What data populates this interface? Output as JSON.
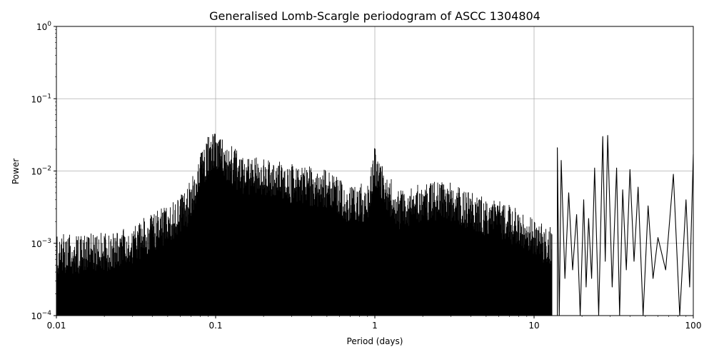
{
  "chart_data": {
    "type": "line",
    "title": "Generalised Lomb-Scargle periodogram of ASCC 1304804",
    "xlabel": "Period (days)",
    "ylabel": "Power",
    "xscale": "log",
    "yscale": "log",
    "xlim": [
      0.01,
      100
    ],
    "ylim": [
      0.0001,
      1
    ],
    "grid": true,
    "legend": "none",
    "line_color": "#000000",
    "x_ticks": [
      {
        "value": 0.01,
        "label": "0.01"
      },
      {
        "value": 0.1,
        "label": "0.1"
      },
      {
        "value": 1,
        "label": "1"
      },
      {
        "value": 10,
        "label": "10"
      },
      {
        "value": 100,
        "label": "100"
      }
    ],
    "y_ticks": [
      {
        "value": 0.0001,
        "base": "10",
        "exp": "−4"
      },
      {
        "value": 0.001,
        "base": "10",
        "exp": "−3"
      },
      {
        "value": 0.01,
        "base": "10",
        "exp": "−2"
      },
      {
        "value": 0.1,
        "base": "10",
        "exp": "−1"
      },
      {
        "value": 1,
        "base": "10",
        "exp": "0"
      }
    ],
    "envelope": {
      "description_points": "approximate upper envelope of dense periodogram (period_days, power)",
      "x": [
        0.01,
        0.015,
        0.02,
        0.03,
        0.04,
        0.05,
        0.065,
        0.08,
        0.09,
        0.1,
        0.15,
        0.2,
        0.3,
        0.4,
        0.5,
        0.7,
        0.9,
        1.0,
        1.1,
        1.4,
        2.0,
        3.0,
        4.0,
        5.0,
        7.0,
        9.0,
        12.0
      ],
      "y": [
        0.0015,
        0.0015,
        0.0016,
        0.002,
        0.003,
        0.004,
        0.006,
        0.02,
        0.035,
        0.04,
        0.018,
        0.017,
        0.014,
        0.013,
        0.012,
        0.007,
        0.008,
        0.025,
        0.015,
        0.006,
        0.008,
        0.008,
        0.006,
        0.005,
        0.004,
        0.003,
        0.002
      ]
    },
    "peaks_long_period": {
      "x": [
        14.0,
        14.8,
        16.5,
        18.5,
        20.5,
        22.0,
        24.0,
        27.0,
        29.0,
        33.0,
        36.0,
        40.0,
        45.0,
        52.0,
        60.0,
        75.0,
        90.0,
        100.0
      ],
      "y": [
        0.021,
        0.014,
        0.005,
        0.0025,
        0.004,
        0.0022,
        0.011,
        0.03,
        0.031,
        0.011,
        0.0055,
        0.0105,
        0.006,
        0.0033,
        0.0012,
        0.009,
        0.004,
        0.017
      ]
    }
  }
}
